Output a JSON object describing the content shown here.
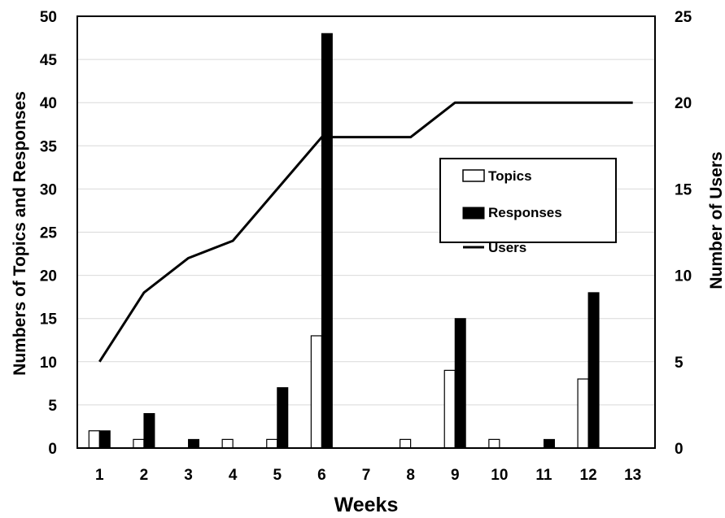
{
  "chart_data": {
    "type": "bar",
    "xlabel": "Weeks",
    "ylabel": "Numbers of Topics and Responses",
    "y2label": "Number of Users",
    "categories": [
      "1",
      "2",
      "3",
      "4",
      "5",
      "6",
      "7",
      "8",
      "9",
      "10",
      "11",
      "12",
      "13"
    ],
    "ylim": [
      0,
      50
    ],
    "y2lim": [
      0,
      25
    ],
    "yticks": [
      0,
      5,
      10,
      15,
      20,
      25,
      30,
      35,
      40,
      45,
      50
    ],
    "y2ticks": [
      0,
      5,
      10,
      15,
      20,
      25
    ],
    "grid": true,
    "legend_position": "right",
    "series": [
      {
        "name": "Topics",
        "type": "bar",
        "axis": "left",
        "color": "#ffffff",
        "values": [
          2,
          1,
          0,
          1,
          1,
          13,
          0,
          1,
          9,
          1,
          0,
          8,
          0
        ]
      },
      {
        "name": "Responses",
        "type": "bar",
        "axis": "left",
        "color": "#000000",
        "values": [
          2,
          4,
          1,
          0,
          7,
          48,
          0,
          0,
          15,
          0,
          1,
          18,
          0
        ]
      },
      {
        "name": "Users",
        "type": "line",
        "axis": "right",
        "color": "#000000",
        "values": [
          5,
          9,
          11,
          12,
          15,
          18,
          18,
          18,
          20,
          20,
          20,
          20,
          20
        ]
      }
    ]
  }
}
